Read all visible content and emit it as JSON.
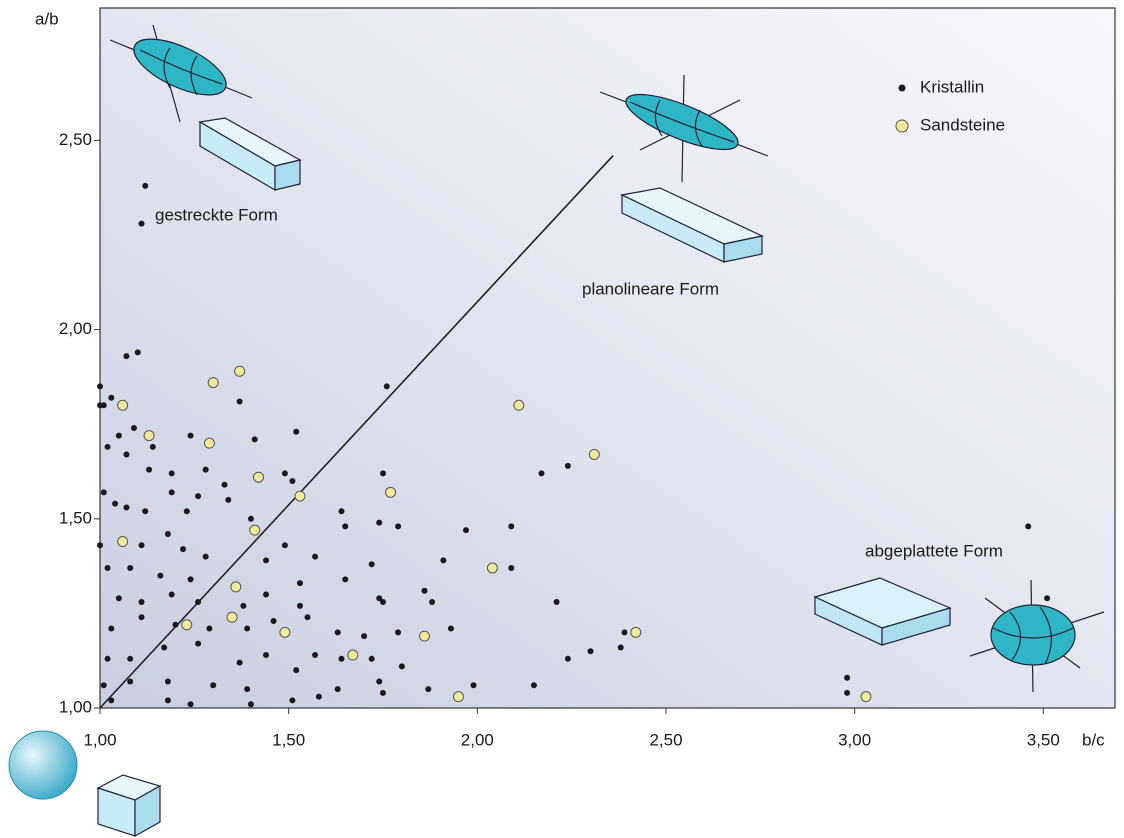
{
  "chart_data": {
    "type": "scatter",
    "xlabel": "b/c",
    "ylabel": "a/b",
    "xlim": [
      1,
      3.69
    ],
    "ylim": [
      1,
      2.85
    ],
    "xticks": [
      {
        "value": 1,
        "label": "1,00"
      },
      {
        "value": 1.5,
        "label": "1,50"
      },
      {
        "value": 2,
        "label": "2,00"
      },
      {
        "value": 2.5,
        "label": "2,50"
      },
      {
        "value": 3,
        "label": "3,00"
      },
      {
        "value": 3.5,
        "label": "3,50"
      }
    ],
    "yticks": [
      {
        "value": 1,
        "label": "1,00"
      },
      {
        "value": 1.5,
        "label": "1,50"
      },
      {
        "value": 2,
        "label": "2,00"
      },
      {
        "value": 2.5,
        "label": "2,50"
      }
    ],
    "legend": "top-right",
    "annotations": [
      "gestreckte Form",
      "planolineare Form",
      "abgeplattete Form"
    ],
    "reference_line": {
      "x": [
        1,
        2.36
      ],
      "y": [
        1,
        2.46
      ]
    },
    "series": [
      {
        "name": "Kristallin",
        "color": "#1a1a1a",
        "x": [
          1.12,
          1.11,
          1.1,
          1.07,
          1.0,
          1.0,
          1.01,
          1.03,
          1.37,
          1.76,
          1.05,
          1.09,
          1.02,
          1.07,
          1.14,
          1.24,
          1.41,
          1.52,
          1.13,
          1.19,
          1.28,
          1.33,
          1.49,
          1.51,
          1.75,
          2.17,
          2.24,
          1.01,
          1.04,
          1.07,
          1.12,
          1.19,
          1.23,
          1.26,
          1.34,
          1.4,
          1.64,
          1.65,
          1.74,
          1.79,
          2.09,
          1.0,
          1.11,
          1.18,
          1.22,
          1.28,
          1.49,
          1.57,
          1.72,
          1.97,
          1.91,
          1.02,
          1.08,
          1.16,
          1.24,
          1.44,
          1.53,
          1.65,
          1.74,
          1.86,
          2.09,
          1.05,
          1.11,
          1.19,
          1.26,
          1.38,
          1.44,
          1.53,
          1.75,
          1.88,
          2.21,
          1.03,
          1.11,
          1.2,
          1.29,
          1.39,
          1.46,
          1.55,
          1.63,
          1.7,
          1.79,
          1.93,
          2.39,
          1.02,
          1.08,
          1.17,
          1.26,
          1.37,
          1.44,
          1.57,
          1.64,
          1.72,
          1.8,
          2.24,
          2.3,
          2.38,
          1.01,
          1.08,
          1.18,
          1.3,
          1.39,
          1.52,
          1.63,
          1.74,
          1.87,
          1.99,
          2.15,
          2.98,
          1.03,
          1.18,
          1.24,
          1.4,
          1.51,
          1.58,
          1.75,
          2.98,
          3.46,
          3.51
        ],
        "y": [
          2.38,
          2.28,
          1.94,
          1.93,
          1.85,
          1.8,
          1.8,
          1.82,
          1.81,
          1.85,
          1.72,
          1.74,
          1.69,
          1.67,
          1.69,
          1.72,
          1.71,
          1.73,
          1.63,
          1.62,
          1.63,
          1.59,
          1.62,
          1.6,
          1.62,
          1.62,
          1.64,
          1.57,
          1.54,
          1.53,
          1.52,
          1.57,
          1.52,
          1.56,
          1.55,
          1.5,
          1.52,
          1.48,
          1.49,
          1.48,
          1.48,
          1.43,
          1.43,
          1.46,
          1.42,
          1.4,
          1.43,
          1.4,
          1.38,
          1.47,
          1.39,
          1.37,
          1.37,
          1.35,
          1.34,
          1.39,
          1.33,
          1.34,
          1.29,
          1.31,
          1.37,
          1.29,
          1.28,
          1.3,
          1.28,
          1.27,
          1.3,
          1.27,
          1.28,
          1.28,
          1.28,
          1.21,
          1.24,
          1.22,
          1.21,
          1.21,
          1.23,
          1.24,
          1.2,
          1.19,
          1.2,
          1.21,
          1.2,
          1.13,
          1.13,
          1.16,
          1.17,
          1.12,
          1.14,
          1.14,
          1.13,
          1.13,
          1.11,
          1.13,
          1.15,
          1.16,
          1.06,
          1.07,
          1.07,
          1.06,
          1.05,
          1.1,
          1.05,
          1.07,
          1.05,
          1.06,
          1.06,
          1.08,
          1.02,
          1.02,
          1.01,
          1.01,
          1.02,
          1.03,
          1.04,
          1.04,
          1.48,
          1.29
        ]
      },
      {
        "name": "Sandsteine",
        "color": "#f2ea9a",
        "x": [
          1.06,
          1.13,
          1.3,
          1.37,
          1.29,
          1.06,
          1.42,
          1.41,
          1.53,
          1.77,
          2.11,
          2.31,
          1.36,
          1.23,
          1.35,
          1.49,
          1.67,
          1.86,
          1.95,
          2.04,
          2.42,
          3.03
        ],
        "y": [
          1.8,
          1.72,
          1.86,
          1.89,
          1.7,
          1.44,
          1.61,
          1.47,
          1.56,
          1.57,
          1.8,
          1.67,
          1.32,
          1.22,
          1.24,
          1.2,
          1.14,
          1.19,
          1.03,
          1.37,
          1.2,
          1.03
        ]
      }
    ]
  }
}
